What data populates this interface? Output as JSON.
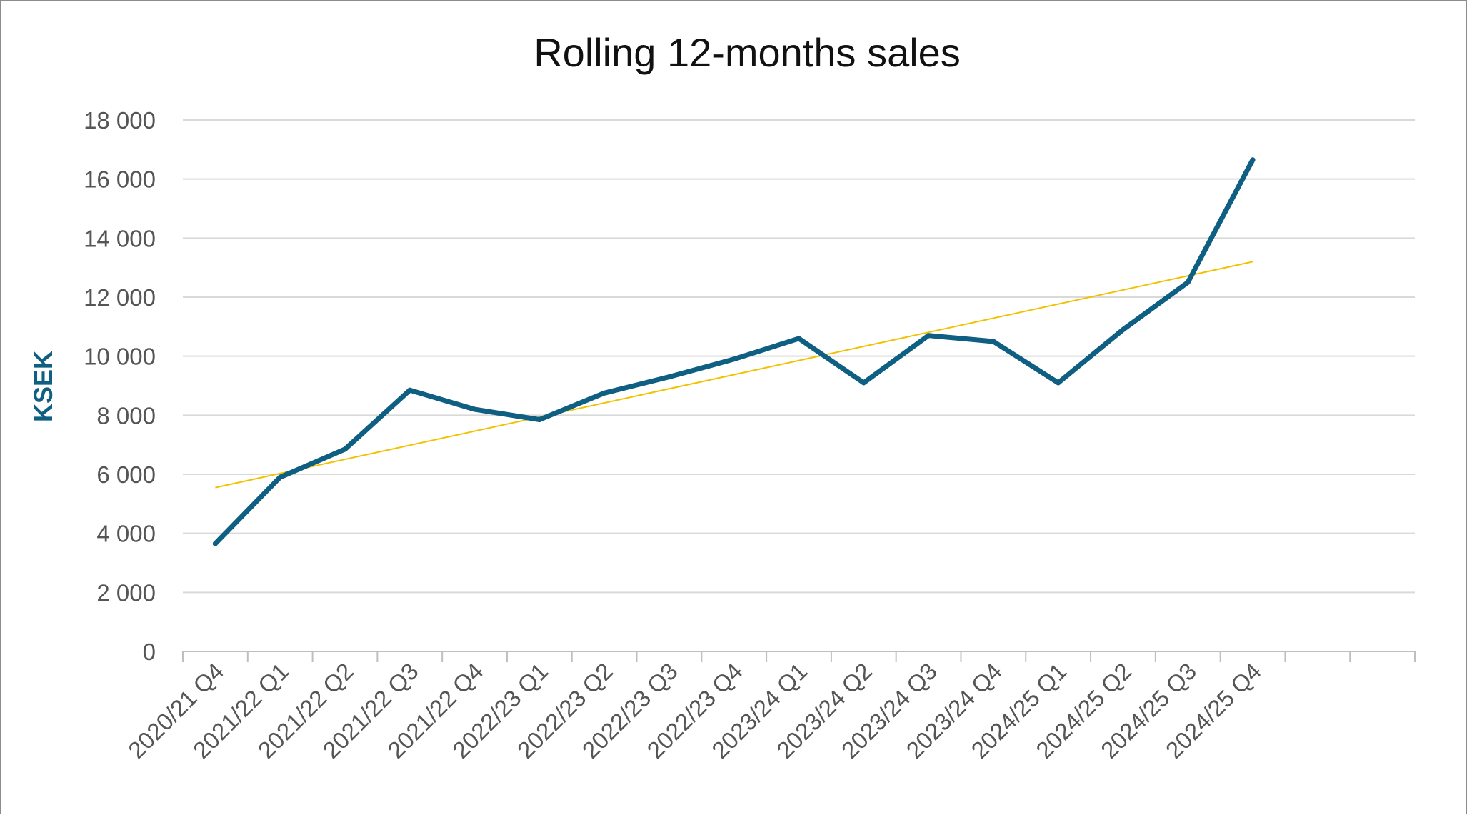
{
  "chart_data": {
    "type": "line",
    "title": "Rolling 12-months sales",
    "xlabel": "",
    "ylabel": "KSEK",
    "ylim": [
      0,
      18000
    ],
    "yticks": [
      0,
      2000,
      4000,
      6000,
      8000,
      10000,
      12000,
      14000,
      16000,
      18000
    ],
    "ytick_labels": [
      "0",
      "2 000",
      "4 000",
      "6 000",
      "8 000",
      "10 000",
      "12 000",
      "14 000",
      "16 000",
      "18 000"
    ],
    "categories": [
      "2020/21 Q4",
      "2021/22 Q1",
      "2021/22 Q2",
      "2021/22 Q3",
      "2021/22 Q4",
      "2022/23 Q1",
      "2022/23 Q2",
      "2022/23 Q3",
      "2022/23 Q4",
      "2023/24 Q1",
      "2023/24 Q2",
      "2023/24 Q3",
      "2023/24 Q4",
      "2024/25 Q1",
      "2024/25 Q2",
      "2024/25 Q3",
      "2024/25 Q4"
    ],
    "category_slots": 19,
    "grid": true,
    "legend": "none",
    "series": [
      {
        "values": [
          3650,
          5900,
          6850,
          8850,
          8200,
          7850,
          8750,
          9300,
          9900,
          10600,
          9100,
          10700,
          10500,
          9100,
          10900,
          12500,
          16650
        ],
        "color": "#0e5f82",
        "style": "solid-thick"
      }
    ],
    "trendline": {
      "type": "linear",
      "start": 5550,
      "end": 13200,
      "color": "#f2c200"
    },
    "colors": {
      "series": "#0e5f82",
      "trendline": "#f2c200",
      "gridline": "#d9d9d9",
      "axis": "#bfbfbf",
      "ylabel": "#0e5f82"
    }
  }
}
